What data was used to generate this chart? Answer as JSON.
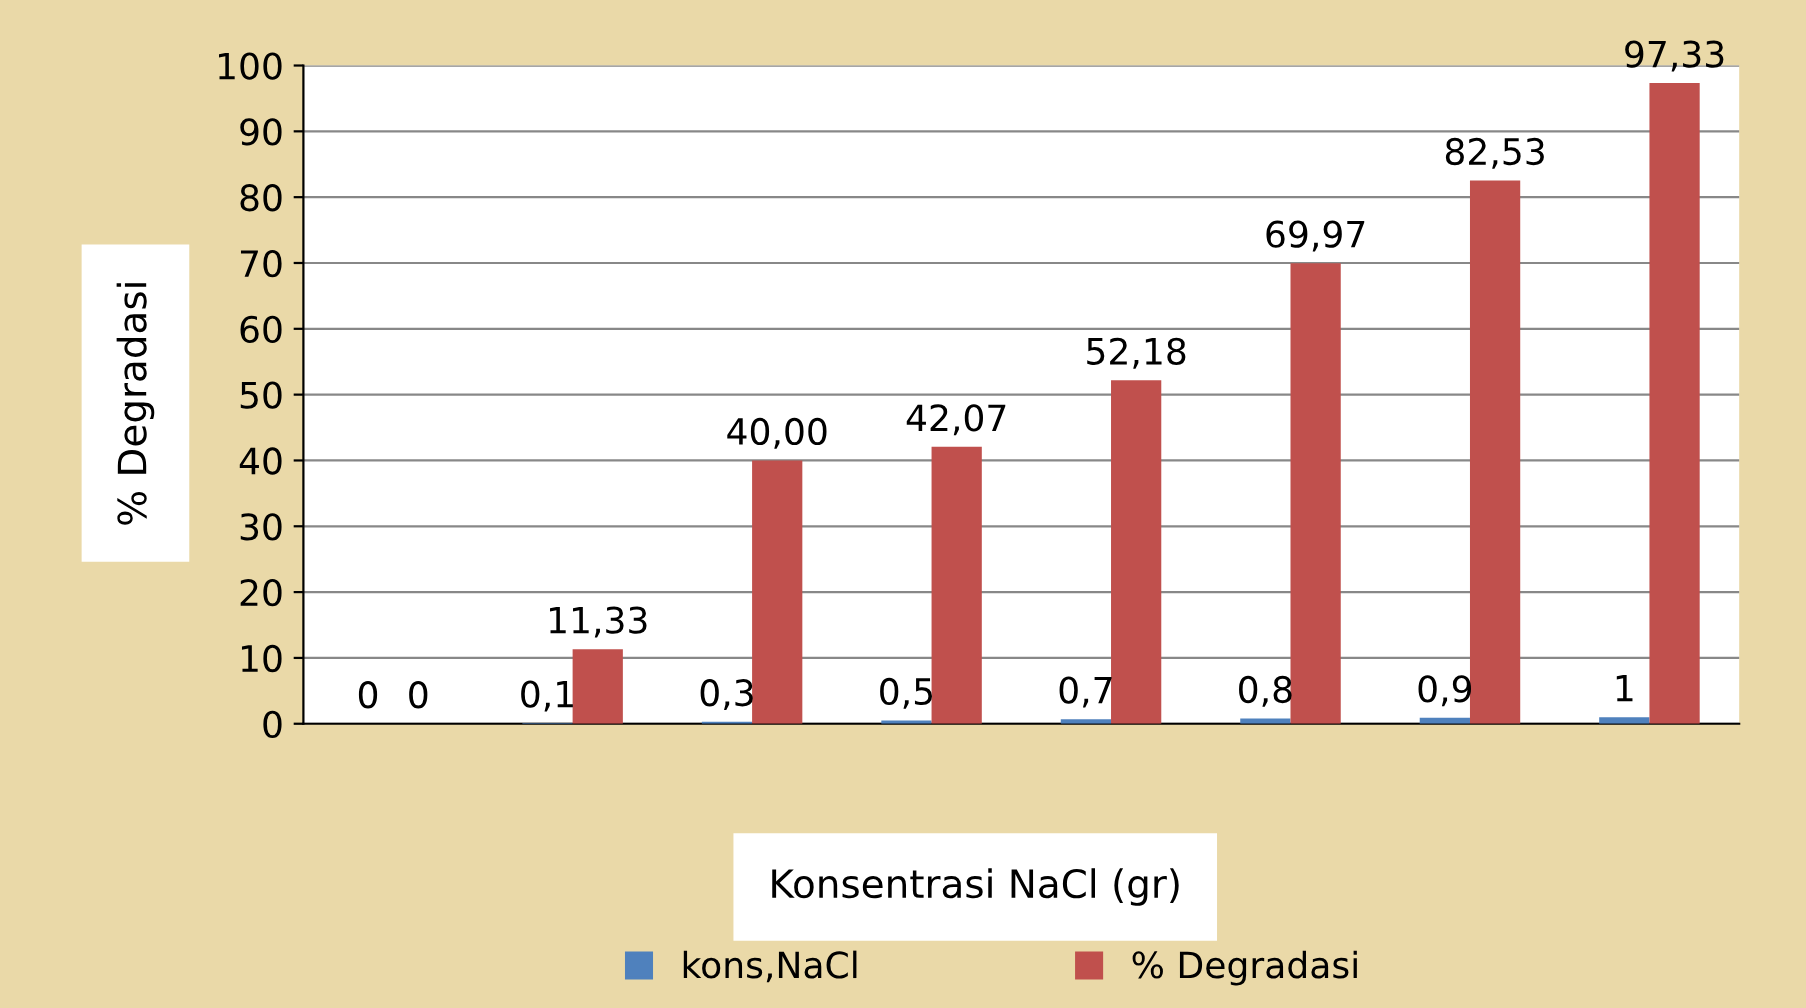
{
  "chart_data": {
    "type": "bar",
    "xlabel": "Konsentrasi NaCl (gr)",
    "ylabel": "% Degradasi",
    "categories": [
      null,
      null,
      null,
      null,
      null,
      null,
      null,
      null
    ],
    "series": [
      {
        "name": "kons,NaCl",
        "color": "#4f81bd",
        "values": [
          0,
          0.1,
          0.3,
          0.5,
          0.7,
          0.8,
          0.9,
          1
        ],
        "value_labels": [
          "0",
          "0,1",
          "0,3",
          "0,5",
          "0,7",
          "0,8",
          "0,9",
          "1"
        ]
      },
      {
        "name": "% Degradasi",
        "color": "#c0504d",
        "values": [
          0,
          11.33,
          40.0,
          42.07,
          52.18,
          69.97,
          82.53,
          97.33
        ],
        "value_labels": [
          "0",
          "11,33",
          "40,00",
          "42,07",
          "52,18",
          "69,97",
          "82,53",
          "97,33"
        ]
      }
    ],
    "ylim": [
      0,
      100
    ],
    "yticks": [
      0,
      10,
      20,
      30,
      40,
      50,
      60,
      70,
      80,
      90,
      100
    ],
    "grid": "y",
    "legend": "bottom"
  }
}
